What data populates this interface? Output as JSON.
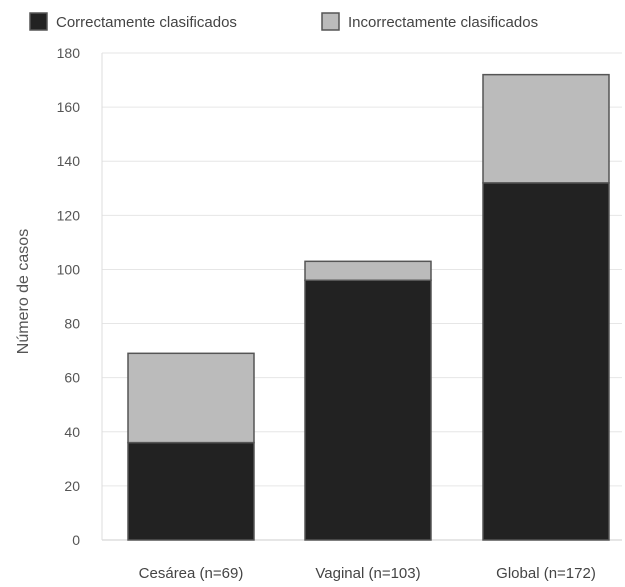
{
  "chart_data": {
    "type": "bar",
    "stacked": true,
    "title": "",
    "xlabel": "",
    "ylabel": "Número de casos",
    "ylim": [
      0,
      180
    ],
    "yticks": [
      0,
      20,
      40,
      60,
      80,
      100,
      120,
      140,
      160,
      180
    ],
    "categories": [
      "Cesárea (n=69)",
      "Vaginal (n=103)",
      "Global (n=172)"
    ],
    "series": [
      {
        "name": "Correctamente clasificados",
        "values": [
          36,
          96,
          132
        ],
        "color": "#222222"
      },
      {
        "name": "Incorrectamente clasificados",
        "values": [
          33,
          7,
          40
        ],
        "color": "#bbbbbb"
      }
    ],
    "grid": true,
    "legend": "top"
  }
}
